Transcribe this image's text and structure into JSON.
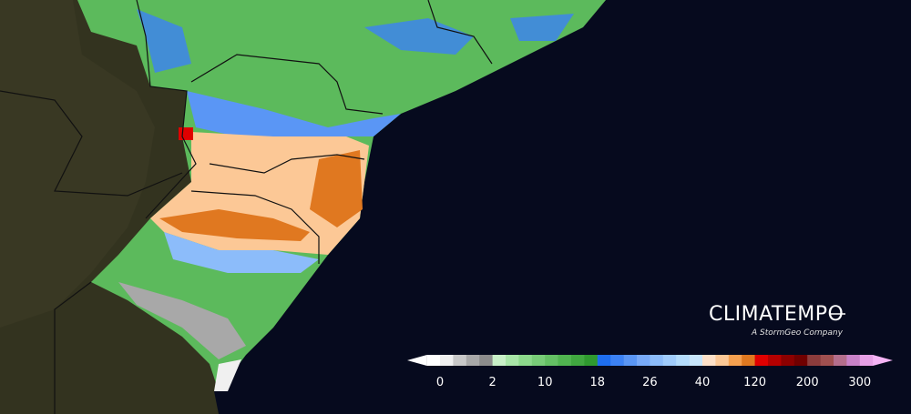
{
  "brand": {
    "name": "CLIMATEMPO",
    "tagline": "A StormGeo Company"
  },
  "legend": {
    "ticks": [
      0,
      2,
      10,
      18,
      26,
      40,
      120,
      200,
      300
    ],
    "colors": [
      "#ffffff",
      "#f0f0f0",
      "#c8c8c8",
      "#a8a8a8",
      "#8c8c8c",
      "#c8f0c8",
      "#a8e6a8",
      "#8cd98c",
      "#78cc78",
      "#64c064",
      "#50b450",
      "#40a840",
      "#2f9a2f",
      "#1e6ef0",
      "#3c82f5",
      "#5a96f5",
      "#78aaf8",
      "#8cbcfa",
      "#a0ccfc",
      "#b4dcfc",
      "#c8e6fc",
      "#fde0c8",
      "#fcc896",
      "#f5a050",
      "#e07820",
      "#e00000",
      "#b40000",
      "#8c0000",
      "#700000",
      "#8c3c3c",
      "#a05050",
      "#b46e8c",
      "#c882c8",
      "#e6a0e6"
    ],
    "low_color": "#ffffff",
    "high_color": "#f5b4f5"
  }
}
